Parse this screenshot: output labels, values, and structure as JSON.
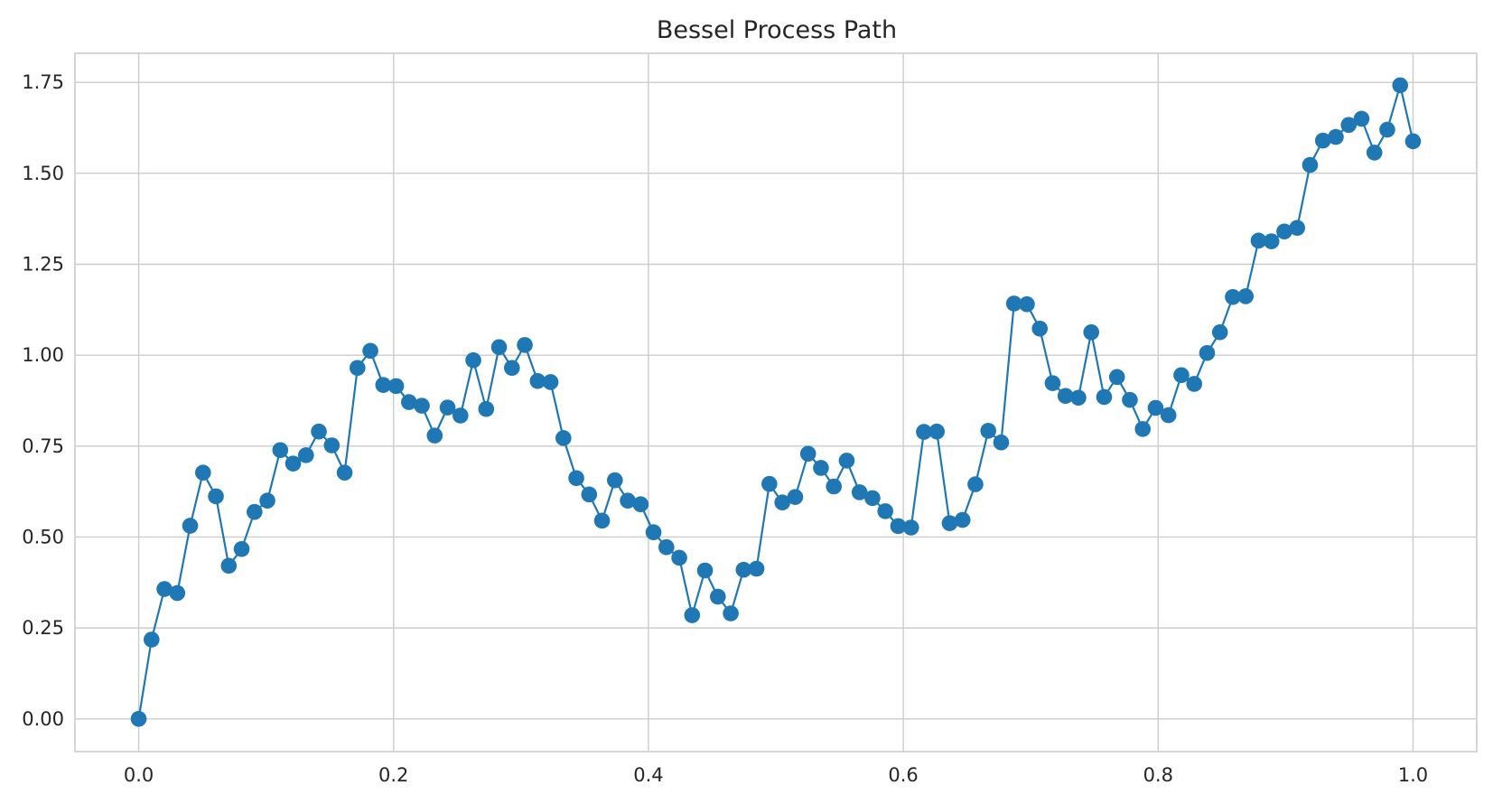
{
  "chart_data": {
    "type": "line",
    "title": "Bessel Process Path",
    "xlabel": "",
    "ylabel": "",
    "xlim": [
      -0.05,
      1.05
    ],
    "ylim": [
      -0.09,
      1.83
    ],
    "xticks": [
      0.0,
      0.2,
      0.4,
      0.6,
      0.8,
      1.0
    ],
    "xtick_labels": [
      "0.0",
      "0.2",
      "0.4",
      "0.6",
      "0.8",
      "1.0"
    ],
    "yticks": [
      0.0,
      0.25,
      0.5,
      0.75,
      1.0,
      1.25,
      1.5,
      1.75
    ],
    "ytick_labels": [
      "0.00",
      "0.25",
      "0.50",
      "0.75",
      "1.00",
      "1.25",
      "1.50",
      "1.75"
    ],
    "grid": true,
    "marker": "circle",
    "series": [
      {
        "color": "#1f77b4",
        "x": [
          0.0,
          0.0101,
          0.0202,
          0.0303,
          0.0404,
          0.0505,
          0.0606,
          0.0707,
          0.0808,
          0.0909,
          0.101,
          0.1111,
          0.1212,
          0.1313,
          0.1414,
          0.1515,
          0.1616,
          0.1717,
          0.1818,
          0.1919,
          0.202,
          0.2121,
          0.2222,
          0.2323,
          0.2424,
          0.2525,
          0.2626,
          0.2727,
          0.2828,
          0.2929,
          0.303,
          0.3131,
          0.3232,
          0.3333,
          0.3434,
          0.3535,
          0.3636,
          0.3737,
          0.3838,
          0.3939,
          0.404,
          0.4141,
          0.4242,
          0.4343,
          0.4444,
          0.4545,
          0.4646,
          0.4747,
          0.4848,
          0.4949,
          0.5051,
          0.5152,
          0.5253,
          0.5354,
          0.5455,
          0.5556,
          0.5657,
          0.5758,
          0.5859,
          0.596,
          0.6061,
          0.6162,
          0.6263,
          0.6364,
          0.6465,
          0.6566,
          0.6667,
          0.6768,
          0.6869,
          0.697,
          0.7071,
          0.7172,
          0.7273,
          0.7374,
          0.7475,
          0.7576,
          0.7677,
          0.7778,
          0.7879,
          0.798,
          0.8081,
          0.8182,
          0.8283,
          0.8384,
          0.8485,
          0.8586,
          0.8687,
          0.8788,
          0.8889,
          0.899,
          0.9091,
          0.9192,
          0.9293,
          0.9394,
          0.9495,
          0.9596,
          0.9697,
          0.9798,
          0.9899,
          1.0
        ],
        "y": [
          0.0,
          0.218,
          0.357,
          0.346,
          0.531,
          0.677,
          0.612,
          0.421,
          0.467,
          0.569,
          0.6,
          0.739,
          0.702,
          0.725,
          0.79,
          0.752,
          0.677,
          0.965,
          1.012,
          0.918,
          0.915,
          0.871,
          0.861,
          0.779,
          0.856,
          0.834,
          0.986,
          0.852,
          1.022,
          0.965,
          1.028,
          0.929,
          0.926,
          0.772,
          0.662,
          0.617,
          0.545,
          0.656,
          0.6,
          0.59,
          0.513,
          0.472,
          0.443,
          0.285,
          0.408,
          0.336,
          0.29,
          0.41,
          0.413,
          0.646,
          0.595,
          0.61,
          0.729,
          0.69,
          0.639,
          0.71,
          0.623,
          0.607,
          0.571,
          0.53,
          0.526,
          0.789,
          0.79,
          0.538,
          0.547,
          0.645,
          0.792,
          0.76,
          1.142,
          1.14,
          1.073,
          0.923,
          0.888,
          0.883,
          1.063,
          0.885,
          0.94,
          0.877,
          0.797,
          0.855,
          0.835,
          0.945,
          0.921,
          1.006,
          1.063,
          1.16,
          1.162,
          1.315,
          1.313,
          1.34,
          1.35,
          1.523,
          1.59,
          1.6,
          1.633,
          1.65,
          1.557,
          1.62,
          1.742,
          1.588
        ]
      }
    ]
  }
}
